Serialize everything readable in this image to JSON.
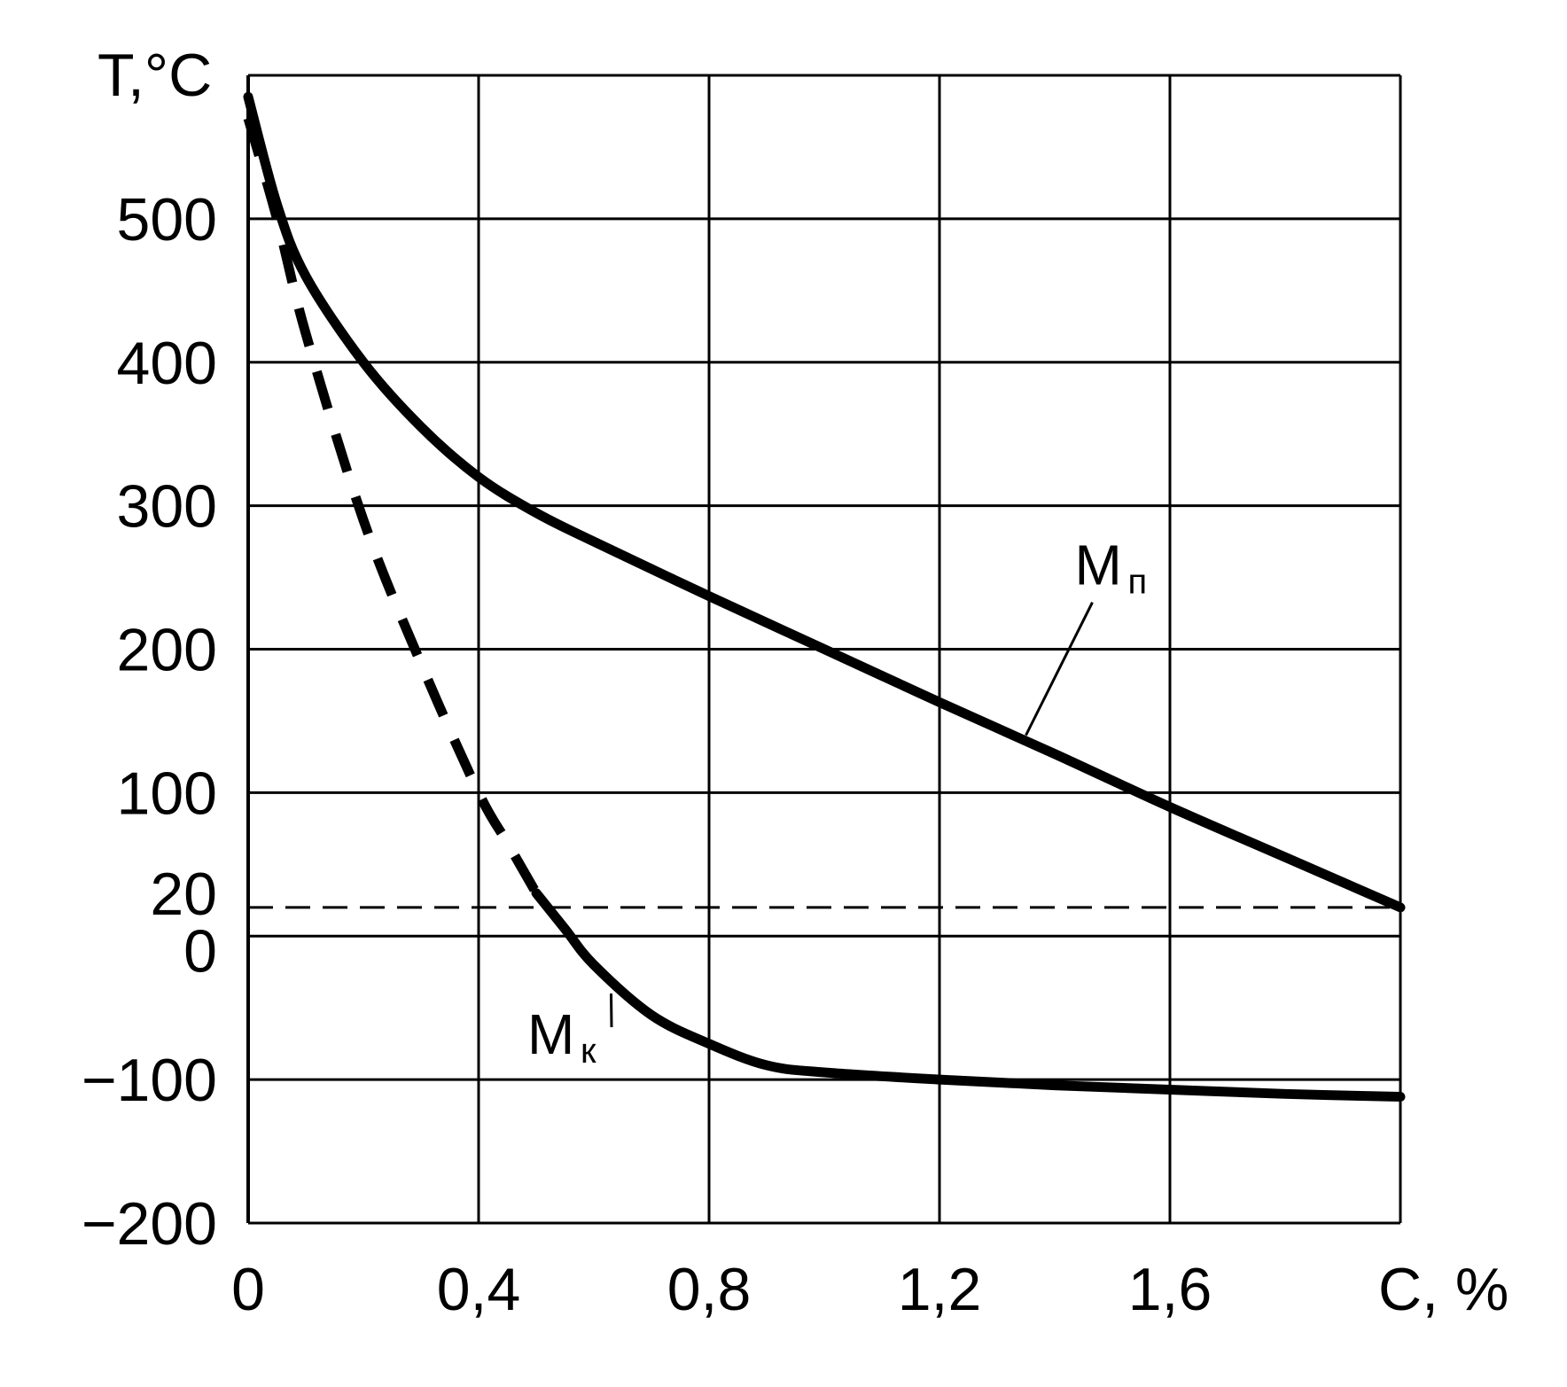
{
  "chart_data": {
    "type": "line",
    "xlabel": "C, %",
    "ylabel": "T,°C",
    "xlim": [
      0,
      2.0
    ],
    "ylim": [
      -200,
      600
    ],
    "grid": true,
    "x_ticks": [
      0,
      0.4,
      0.8,
      1.2,
      1.6
    ],
    "x_tick_labels": [
      "0",
      "0,4",
      "0,8",
      "1,2",
      "1,6"
    ],
    "y_ticks": [
      -200,
      -100,
      0,
      20,
      100,
      200,
      300,
      400,
      500
    ],
    "y_tick_labels": [
      "−200",
      "−100",
      "0",
      "20",
      "100",
      "200",
      "300",
      "400",
      "500"
    ],
    "reference_lines": [
      {
        "y": 20,
        "style": "dashed"
      }
    ],
    "series": [
      {
        "name": "Mп",
        "label_main": "M",
        "label_sub": "п",
        "style": "solid",
        "x": [
          0,
          0.05,
          0.1,
          0.2,
          0.3,
          0.4,
          0.5,
          0.6,
          0.8,
          1.0,
          1.2,
          1.4,
          1.6,
          1.8,
          2.0
        ],
        "y": [
          585,
          510,
          460,
          400,
          355,
          320,
          295,
          275,
          237,
          200,
          163,
          127,
          90,
          55,
          20
        ]
      },
      {
        "name": "Mк",
        "label_main": "M",
        "label_sub": "к",
        "style": "dashed-then-solid",
        "x": [
          0,
          0.05,
          0.1,
          0.2,
          0.3,
          0.4,
          0.45,
          0.5,
          0.55,
          0.6,
          0.7,
          0.8,
          0.9,
          1.0,
          1.2,
          1.4,
          1.6,
          1.8,
          2.0
        ],
        "y": [
          570,
          500,
          420,
          290,
          190,
          100,
          65,
          30,
          5,
          -20,
          -55,
          -75,
          -90,
          -95,
          -100,
          -104,
          -107,
          -110,
          -112
        ],
        "dashed_until_x": 0.5
      }
    ],
    "annotations": [
      {
        "series": "Mп",
        "anchor": [
          1.35,
          140
        ],
        "label_at": [
          1.45,
          245
        ]
      },
      {
        "series": "Mк",
        "anchor": [
          0.63,
          -40
        ],
        "label_at": [
          0.5,
          -82
        ]
      }
    ]
  }
}
